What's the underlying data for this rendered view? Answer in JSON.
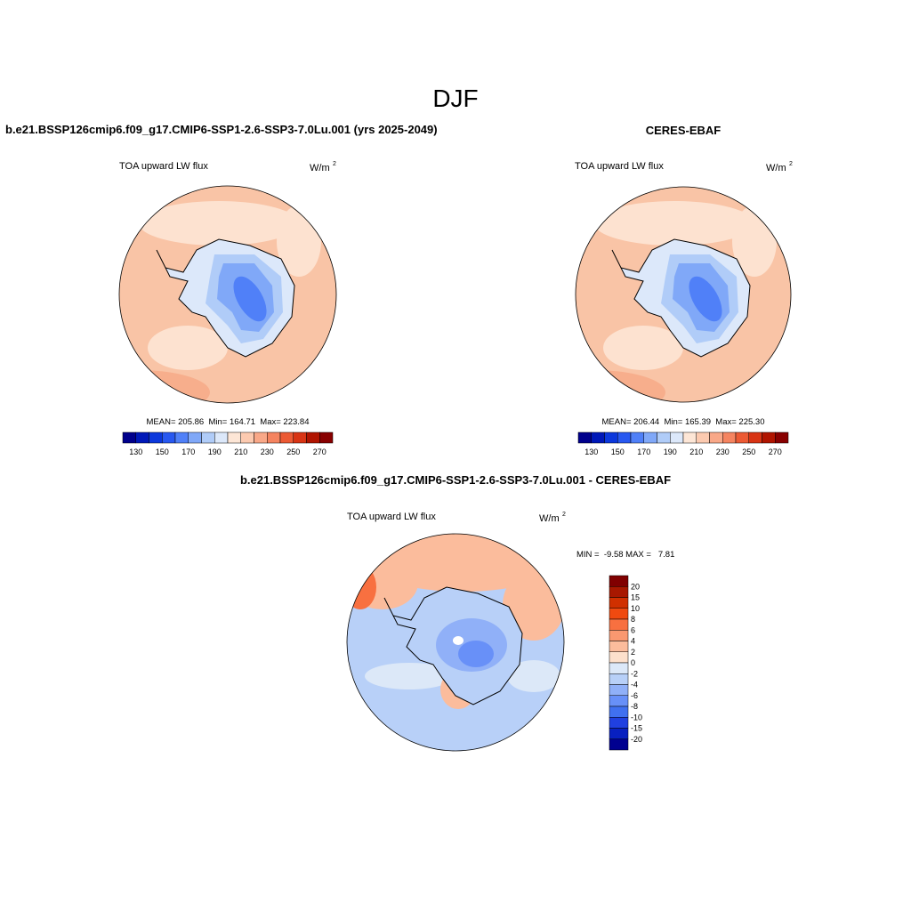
{
  "title": "DJF",
  "panels": [
    {
      "title": "b.e21.BSSP126cmip6.f09_g17.CMIP6-SSP1-2.6-SSP3-7.0Lu.001 (yrs 2025-2049)",
      "left_label": "TOA upward LW flux",
      "units": "W/m",
      "units_exponent": "2",
      "stats": "MEAN= 205.86  Min= 164.71  Max= 223.84",
      "colorbar": {
        "labels": [
          130,
          150,
          170,
          190,
          210,
          230,
          250,
          270
        ],
        "colors": [
          "#00008c",
          "#0018b8",
          "#0c38dc",
          "#2858f0",
          "#5080f8",
          "#80a8f8",
          "#b0ccf8",
          "#dce8fa",
          "#fde6d6",
          "#fccab0",
          "#f9a888",
          "#f58460",
          "#ec5a34",
          "#d83414",
          "#b01400",
          "#880000"
        ]
      }
    },
    {
      "title": "CERES-EBAF",
      "left_label": "TOA upward LW flux",
      "units": "W/m",
      "units_exponent": "2",
      "stats": "MEAN= 206.44  Min= 165.39  Max= 225.30",
      "colorbar": {
        "labels": [
          130,
          150,
          170,
          190,
          210,
          230,
          250,
          270
        ],
        "colors": [
          "#00008c",
          "#0018b8",
          "#0c38dc",
          "#2858f0",
          "#5080f8",
          "#80a8f8",
          "#b0ccf8",
          "#dce8fa",
          "#fde6d6",
          "#fccab0",
          "#f9a888",
          "#f58460",
          "#ec5a34",
          "#d83414",
          "#b01400",
          "#880000"
        ]
      }
    },
    {
      "title": "b.e21.BSSP126cmip6.f09_g17.CMIP6-SSP1-2.6-SSP3-7.0Lu.001 - CERES-EBAF",
      "left_label": "TOA upward LW flux",
      "units": "W/m",
      "units_exponent": "2",
      "stats": "MIN =  -9.58 MAX =   7.81",
      "colorbar": {
        "labels": [
          20,
          15,
          10,
          8,
          6,
          4,
          2,
          0,
          -2,
          -4,
          -6,
          -8,
          -10,
          -15,
          -20
        ],
        "colors": [
          "#800000",
          "#a81800",
          "#d03000",
          "#f04a10",
          "#f87040",
          "#fa9870",
          "#fbbc9c",
          "#fde0cc",
          "#dce8f8",
          "#b8d0f8",
          "#90b0f8",
          "#6890f8",
          "#4070f0",
          "#2040e0",
          "#0820c0",
          "#000090"
        ]
      }
    }
  ]
}
